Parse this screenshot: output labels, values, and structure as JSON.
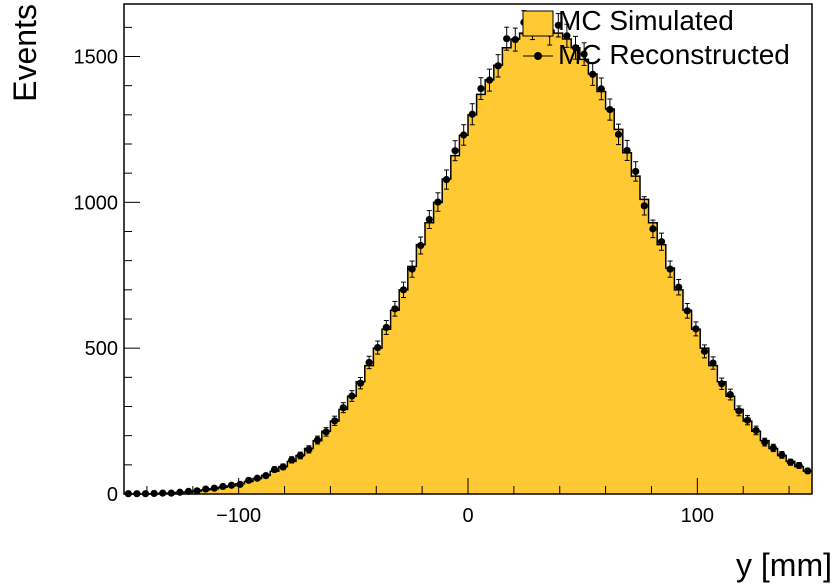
{
  "chart_data": {
    "type": "bar",
    "title": "",
    "xlabel": "y [mm]",
    "ylabel": "Events",
    "xlim": [
      -150,
      150
    ],
    "ylim": [
      0,
      1680
    ],
    "x_ticks": [
      -100,
      0,
      100
    ],
    "x_tick_labels": [
      "−100",
      "0",
      "100"
    ],
    "y_ticks": [
      0,
      500,
      1000,
      1500
    ],
    "y_tick_labels": [
      "0",
      "500",
      "1000",
      "1500"
    ],
    "grid": false,
    "legend_position": "top-right",
    "bin_edges_start": -150,
    "bin_width": 3.75,
    "series": [
      {
        "name": "MC Simulated",
        "style": "filled-histogram",
        "color": "#fec932",
        "line_color": "#000000",
        "values": [
          0,
          0,
          0,
          1,
          2,
          3,
          5,
          7,
          10,
          14,
          18,
          23,
          28,
          35,
          43,
          53,
          64,
          78,
          94,
          112,
          132,
          156,
          183,
          215,
          250,
          290,
          335,
          385,
          440,
          500,
          565,
          630,
          700,
          780,
          855,
          930,
          1000,
          1080,
          1160,
          1230,
          1300,
          1370,
          1420,
          1470,
          1530,
          1560,
          1580,
          1590,
          1600,
          1590,
          1580,
          1560,
          1530,
          1490,
          1440,
          1380,
          1320,
          1250,
          1170,
          1090,
          1010,
          930,
          855,
          775,
          700,
          630,
          565,
          500,
          440,
          385,
          335,
          290,
          250,
          215,
          183,
          156,
          132,
          112,
          94,
          78
        ]
      },
      {
        "name": "MC Reconstructed",
        "style": "points-with-errors",
        "color": "#000000",
        "values": [
          1,
          1,
          1,
          2,
          3,
          3,
          6,
          9,
          11,
          17,
          20,
          26,
          30,
          33,
          47,
          54,
          63,
          84,
          93,
          117,
          132,
          153,
          185,
          213,
          251,
          296,
          336,
          380,
          451,
          502,
          571,
          635,
          700,
          771,
          852,
          941,
          1001,
          1078,
          1177,
          1231,
          1302,
          1390,
          1419,
          1468,
          1561,
          1558,
          1617,
          1598,
          1612,
          1579,
          1607,
          1571,
          1530,
          1508,
          1439,
          1389,
          1318,
          1233,
          1178,
          1106,
          988,
          909,
          865,
          771,
          709,
          628,
          566,
          489,
          449,
          378,
          341,
          285,
          253,
          218,
          178,
          158,
          134,
          109,
          98,
          79
        ]
      }
    ]
  }
}
